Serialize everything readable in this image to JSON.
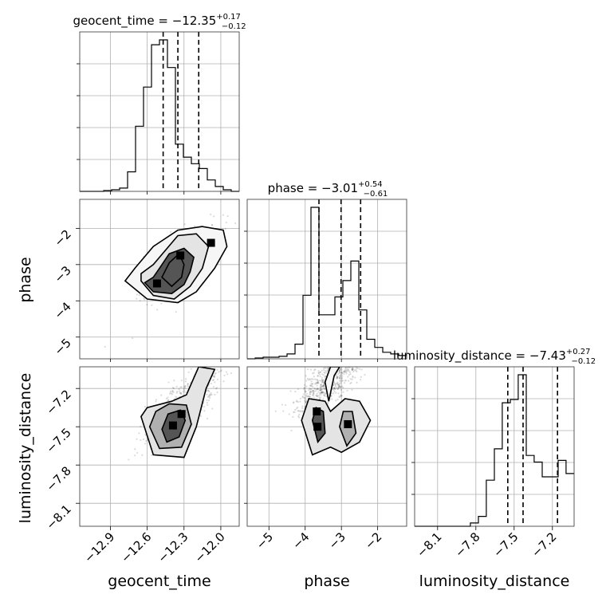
{
  "chart_data": {
    "type": "corner",
    "parameters": [
      {
        "name": "geocent_time",
        "title_value": "−12.35",
        "title_plus": "+0.17",
        "title_minus": "−0.12",
        "range": [
          -13.15,
          -11.85
        ],
        "ticks": [
          -12.9,
          -12.6,
          -12.3,
          -12.0
        ],
        "tick_labels": [
          "−12.9",
          "−12.6",
          "−12.3",
          "−12.0"
        ],
        "quantiles": [
          -12.47,
          -12.35,
          -12.18
        ],
        "hist": {
          "edges": [
            -13.15,
            -13.085,
            -13.02,
            -12.955,
            -12.89,
            -12.825,
            -12.76,
            -12.695,
            -12.63,
            -12.565,
            -12.5,
            -12.435,
            -12.37,
            -12.305,
            -12.24,
            -12.175,
            -12.11,
            -12.045,
            -11.98,
            -11.915,
            -11.85
          ],
          "counts": [
            0,
            0,
            0,
            0.5,
            1,
            2,
            12,
            40,
            64,
            90,
            93,
            76,
            29,
            21,
            17,
            14,
            7,
            3,
            1,
            0
          ]
        }
      },
      {
        "name": "phase",
        "title_value": "−3.01",
        "title_plus": "+0.54",
        "title_minus": "−0.61",
        "range": [
          -5.6,
          -1.2
        ],
        "ticks": [
          -5,
          -4,
          -3,
          -2
        ],
        "tick_labels": [
          "−5",
          "−4",
          "−3",
          "−2"
        ],
        "quantiles": [
          -3.62,
          -3.01,
          -2.47
        ],
        "hist": {
          "edges": [
            -5.6,
            -5.38,
            -5.16,
            -4.94,
            -4.72,
            -4.5,
            -4.28,
            -4.06,
            -3.84,
            -3.62,
            -3.4,
            -3.18,
            -2.96,
            -2.74,
            -2.52,
            -2.3,
            -2.08,
            -1.86,
            -1.64,
            -1.42,
            -1.2
          ],
          "counts": [
            0,
            0.5,
            1,
            1,
            1.5,
            3,
            9,
            39,
            93,
            27,
            27,
            38,
            48,
            60,
            30,
            12,
            7,
            4,
            3,
            2
          ]
        }
      },
      {
        "name": "luminosity_distance",
        "title_value": "−7.43",
        "title_plus": "+0.27",
        "title_minus": "−0.12",
        "range": [
          -8.28,
          -7.03
        ],
        "ticks": [
          -8.1,
          -7.8,
          -7.5,
          -7.2
        ],
        "tick_labels": [
          "−8.1",
          "−7.8",
          "−7.5",
          "−7.2"
        ],
        "quantiles": [
          -7.55,
          -7.43,
          -7.16
        ],
        "hist": {
          "edges": [
            -8.28,
            -8.218,
            -8.155,
            -8.093,
            -8.03,
            -7.968,
            -7.905,
            -7.843,
            -7.78,
            -7.718,
            -7.655,
            -7.593,
            -7.53,
            -7.468,
            -7.405,
            -7.343,
            -7.28,
            -7.218,
            -7.155,
            -7.093,
            -7.03
          ],
          "counts": [
            0,
            0,
            0,
            0,
            0,
            0,
            0,
            2,
            6,
            28,
            47,
            75,
            77,
            92,
            43,
            39,
            30,
            30,
            40,
            32
          ]
        }
      }
    ],
    "pairs": [
      {
        "x": "geocent_time",
        "y": "phase",
        "contours": [
          [
            [
              -12.62,
              -3.5
            ],
            [
              -12.55,
              -3.75
            ],
            [
              -12.4,
              -3.8
            ],
            [
              -12.3,
              -3.55
            ],
            [
              -12.25,
              -3.2
            ],
            [
              -12.22,
              -2.8
            ],
            [
              -12.3,
              -2.55
            ],
            [
              -12.42,
              -2.7
            ],
            [
              -12.5,
              -3.1
            ],
            [
              -12.55,
              -3.35
            ]
          ],
          [
            [
              -12.48,
              -3.35
            ],
            [
              -12.4,
              -3.6
            ],
            [
              -12.32,
              -3.35
            ],
            [
              -12.3,
              -3.0
            ],
            [
              -12.34,
              -2.7
            ],
            [
              -12.42,
              -2.95
            ]
          ],
          [
            [
              -12.65,
              -3.45
            ],
            [
              -12.55,
              -3.85
            ],
            [
              -12.38,
              -3.95
            ],
            [
              -12.25,
              -3.6
            ],
            [
              -12.15,
              -3.1
            ],
            [
              -12.1,
              -2.5
            ],
            [
              -12.2,
              -2.15
            ],
            [
              -12.35,
              -2.2
            ],
            [
              -12.45,
              -2.6
            ],
            [
              -12.55,
              -3.0
            ],
            [
              -12.65,
              -3.25
            ]
          ],
          [
            [
              -12.78,
              -3.45
            ],
            [
              -12.6,
              -3.95
            ],
            [
              -12.35,
              -4.05
            ],
            [
              -12.2,
              -3.75
            ],
            [
              -12.05,
              -3.1
            ],
            [
              -11.95,
              -2.5
            ],
            [
              -11.98,
              -2.05
            ],
            [
              -12.15,
              -1.95
            ],
            [
              -12.35,
              -2.05
            ],
            [
              -12.55,
              -2.5
            ],
            [
              -12.7,
              -3.1
            ]
          ]
        ],
        "peaks": [
          [
            -12.52,
            -3.52
          ],
          [
            -12.33,
            -2.75
          ],
          [
            -12.08,
            -2.4
          ]
        ]
      },
      {
        "x": "geocent_time",
        "y": "luminosity_distance",
        "contours": [
          [
            [
              -12.48,
              -7.52
            ],
            [
              -12.44,
              -7.62
            ],
            [
              -12.34,
              -7.58
            ],
            [
              -12.29,
              -7.45
            ],
            [
              -12.33,
              -7.37
            ],
            [
              -12.43,
              -7.4
            ]
          ],
          [
            [
              -12.58,
              -7.5
            ],
            [
              -12.5,
              -7.67
            ],
            [
              -12.32,
              -7.66
            ],
            [
              -12.24,
              -7.48
            ],
            [
              -12.28,
              -7.33
            ],
            [
              -12.42,
              -7.32
            ],
            [
              -12.53,
              -7.38
            ]
          ],
          [
            [
              -12.65,
              -7.42
            ],
            [
              -12.55,
              -7.72
            ],
            [
              -12.3,
              -7.74
            ],
            [
              -12.2,
              -7.5
            ],
            [
              -12.12,
              -7.2
            ],
            [
              -12.05,
              -7.05
            ],
            [
              -12.18,
              -7.03
            ],
            [
              -12.28,
              -7.25
            ],
            [
              -12.4,
              -7.3
            ],
            [
              -12.6,
              -7.35
            ]
          ]
        ],
        "peaks": [
          [
            -12.39,
            -7.49
          ],
          [
            -12.32,
            -7.4
          ]
        ]
      },
      {
        "x": "phase",
        "y": "luminosity_distance",
        "contours": [
          [
            [
              -3.8,
              -7.45
            ],
            [
              -3.65,
              -7.62
            ],
            [
              -3.45,
              -7.55
            ],
            [
              -3.5,
              -7.38
            ],
            [
              -3.7,
              -7.35
            ]
          ],
          [
            [
              -3.05,
              -7.5
            ],
            [
              -2.85,
              -7.65
            ],
            [
              -2.6,
              -7.55
            ],
            [
              -2.7,
              -7.38
            ],
            [
              -2.95,
              -7.38
            ]
          ],
          [
            [
              -4.1,
              -7.45
            ],
            [
              -3.8,
              -7.72
            ],
            [
              -3.3,
              -7.66
            ],
            [
              -3.0,
              -7.7
            ],
            [
              -2.5,
              -7.62
            ],
            [
              -2.2,
              -7.45
            ],
            [
              -2.5,
              -7.3
            ],
            [
              -2.9,
              -7.28
            ],
            [
              -3.3,
              -7.38
            ],
            [
              -3.45,
              -7.3
            ],
            [
              -3.9,
              -7.28
            ]
          ],
          [
            [
              -3.35,
              -7.3
            ],
            [
              -3.2,
              -7.1
            ],
            [
              -3.05,
              -7.03
            ],
            [
              -3.3,
              -7.03
            ],
            [
              -3.45,
              -7.15
            ]
          ]
        ],
        "peaks": [
          [
            -3.68,
            -7.38
          ],
          [
            -3.66,
            -7.5
          ],
          [
            -2.82,
            -7.48
          ]
        ]
      }
    ]
  }
}
